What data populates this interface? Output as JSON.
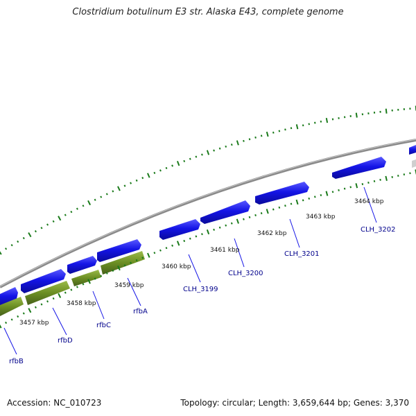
{
  "title": "Clostridium botulinum E3 str. Alaska E43, complete genome",
  "footer": {
    "accession": "Accession: NC_010723",
    "summary": "Topology: circular; Length: 3,659,644 bp; Genes: 3,370"
  },
  "scale_labels": [
    "3457 kbp",
    "3458 kbp",
    "3459 kbp",
    "3460 kbp",
    "3461 kbp",
    "3462 kbp",
    "3463 kbp",
    "3464 kbp"
  ],
  "gene_labels": [
    "rfbB",
    "rfbD",
    "rfbC",
    "rfbA",
    "CLH_3199",
    "CLH_3200",
    "CLH_3201",
    "CLH_3202"
  ],
  "colors": {
    "cds_blue": "#1414e6",
    "rfb_green": "#6b8e23",
    "backbone_gray": "#8a8a8a",
    "tick_green": "#1a7a1a",
    "label_blue": "#00008b"
  }
}
